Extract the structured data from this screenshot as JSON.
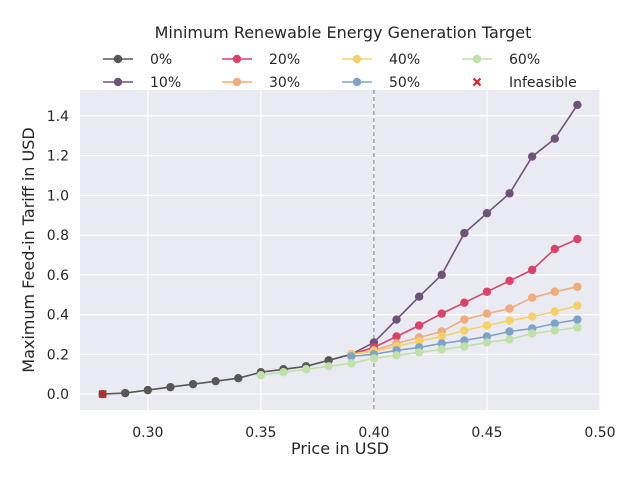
{
  "chart_data": {
    "type": "line",
    "title": "",
    "xlabel": "Price in USD",
    "ylabel": "Maximum Feed-in Tariff in USD",
    "xlim": [
      0.27,
      0.5
    ],
    "ylim": [
      -0.08,
      1.53
    ],
    "xticks": [
      0.3,
      0.35,
      0.4,
      0.45,
      0.5
    ],
    "xtick_labels": [
      "0.30",
      "0.35",
      "0.40",
      "0.45",
      "0.50"
    ],
    "yticks": [
      0.0,
      0.2,
      0.4,
      0.6,
      0.8,
      1.0,
      1.2,
      1.4
    ],
    "ytick_labels": [
      "0.0",
      "0.2",
      "0.4",
      "0.6",
      "0.8",
      "1.0",
      "1.2",
      "1.4"
    ],
    "grid": true,
    "reference_line_x": 0.4,
    "legend": {
      "title": "Minimum Renewable Energy Generation Target",
      "placement": "top-center",
      "columns": 4
    },
    "series": [
      {
        "name": "0%",
        "color": "#585656",
        "x": [
          0.28,
          0.29,
          0.3,
          0.31,
          0.32,
          0.33,
          0.34,
          0.35,
          0.36,
          0.37,
          0.38,
          0.39
        ],
        "y": [
          0.0,
          0.005,
          0.02,
          0.035,
          0.05,
          0.065,
          0.08,
          0.11,
          0.125,
          0.14,
          0.17,
          0.2
        ]
      },
      {
        "name": "10%",
        "color": "#6e5379",
        "x": [
          0.39,
          0.4,
          0.41,
          0.42,
          0.43,
          0.44,
          0.45,
          0.46,
          0.47,
          0.48,
          0.49
        ],
        "y": [
          0.2,
          0.26,
          0.375,
          0.49,
          0.6,
          0.81,
          0.91,
          1.01,
          1.195,
          1.285,
          1.455
        ]
      },
      {
        "name": "20%",
        "color": "#d9436a",
        "x": [
          0.39,
          0.4,
          0.41,
          0.42,
          0.43,
          0.44,
          0.45,
          0.46,
          0.47,
          0.48,
          0.49
        ],
        "y": [
          0.2,
          0.235,
          0.29,
          0.345,
          0.405,
          0.46,
          0.515,
          0.57,
          0.625,
          0.73,
          0.78
        ]
      },
      {
        "name": "30%",
        "color": "#f0ab7c",
        "x": [
          0.39,
          0.4,
          0.41,
          0.42,
          0.43,
          0.44,
          0.45,
          0.46,
          0.47,
          0.48,
          0.49
        ],
        "y": [
          0.2,
          0.22,
          0.255,
          0.285,
          0.315,
          0.375,
          0.405,
          0.43,
          0.485,
          0.515,
          0.54
        ]
      },
      {
        "name": "40%",
        "color": "#f5d06a",
        "x": [
          0.39,
          0.4,
          0.41,
          0.42,
          0.43,
          0.44,
          0.45,
          0.46,
          0.47,
          0.48,
          0.49
        ],
        "y": [
          0.2,
          0.215,
          0.24,
          0.265,
          0.29,
          0.32,
          0.345,
          0.37,
          0.39,
          0.415,
          0.445
        ]
      },
      {
        "name": "50%",
        "color": "#7fa3c6",
        "x": [
          0.39,
          0.4,
          0.41,
          0.42,
          0.43,
          0.44,
          0.45,
          0.46,
          0.47,
          0.48,
          0.49
        ],
        "y": [
          0.19,
          0.2,
          0.22,
          0.235,
          0.255,
          0.27,
          0.29,
          0.315,
          0.33,
          0.355,
          0.375
        ]
      },
      {
        "name": "60%",
        "color": "#bfe0a8",
        "x": [
          0.35,
          0.36,
          0.37,
          0.38,
          0.39,
          0.4,
          0.41,
          0.42,
          0.43,
          0.44,
          0.45,
          0.46,
          0.47,
          0.48,
          0.49
        ],
        "y": [
          0.095,
          0.11,
          0.125,
          0.14,
          0.155,
          0.18,
          0.195,
          0.21,
          0.225,
          0.24,
          0.26,
          0.275,
          0.305,
          0.32,
          0.335
        ]
      }
    ],
    "infeasible": {
      "name": "Infeasible",
      "color": "#e31a1c",
      "marker": "x",
      "x": [
        0.28
      ],
      "y": [
        0.0
      ]
    }
  }
}
